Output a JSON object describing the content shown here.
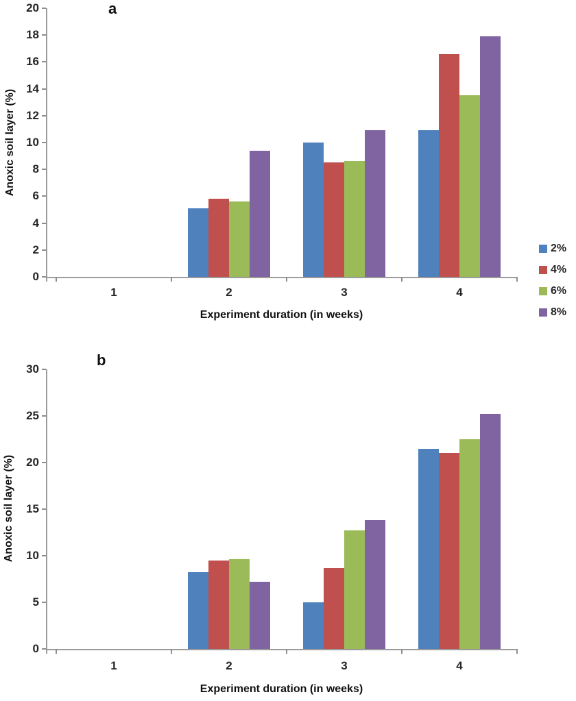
{
  "figure": {
    "background": "#ffffff"
  },
  "legend": {
    "position": "right",
    "items": [
      {
        "label": "2%",
        "color": "#4F81BD"
      },
      {
        "label": "4%",
        "color": "#C0504D"
      },
      {
        "label": "6%",
        "color": "#9BBB59"
      },
      {
        "label": "8%",
        "color": "#8064A2"
      }
    ]
  },
  "chart_data": [
    {
      "type": "bar",
      "panel_label": "a",
      "title": "",
      "xlabel": "Experiment duration (in weeks)",
      "ylabel": "Anoxic soil layer (%)",
      "categories": [
        "1",
        "2",
        "3",
        "4"
      ],
      "ylim": [
        0,
        20
      ],
      "yticks": [
        0,
        2,
        4,
        6,
        8,
        10,
        12,
        14,
        16,
        18,
        20
      ],
      "grid": false,
      "legend_position": "right",
      "series": [
        {
          "name": "2%",
          "color": "#4F81BD",
          "values": [
            0,
            5.1,
            10.0,
            10.9
          ]
        },
        {
          "name": "4%",
          "color": "#C0504D",
          "values": [
            0,
            5.8,
            8.5,
            16.6
          ]
        },
        {
          "name": "6%",
          "color": "#9BBB59",
          "values": [
            0,
            5.6,
            8.6,
            13.5
          ]
        },
        {
          "name": "8%",
          "color": "#8064A2",
          "values": [
            0,
            9.4,
            10.9,
            17.9
          ]
        }
      ]
    },
    {
      "type": "bar",
      "panel_label": "b",
      "title": "",
      "xlabel": "Experiment duration (in weeks)",
      "ylabel": "Anoxic soil layer (%)",
      "categories": [
        "1",
        "2",
        "3",
        "4"
      ],
      "ylim": [
        0,
        30
      ],
      "yticks": [
        0,
        5,
        10,
        15,
        20,
        25,
        30
      ],
      "grid": false,
      "legend_position": "none",
      "series": [
        {
          "name": "2%",
          "color": "#4F81BD",
          "values": [
            0,
            8.2,
            5.0,
            21.5
          ]
        },
        {
          "name": "4%",
          "color": "#C0504D",
          "values": [
            0,
            9.5,
            8.7,
            21.0
          ]
        },
        {
          "name": "6%",
          "color": "#9BBB59",
          "values": [
            0,
            9.6,
            12.7,
            22.5
          ]
        },
        {
          "name": "8%",
          "color": "#8064A2",
          "values": [
            0,
            7.2,
            13.8,
            25.2
          ]
        }
      ]
    }
  ],
  "axis_style": {
    "line_color": "#9b9b9b",
    "tick_color": "#8c8c8c",
    "tick_label_color": "#262626",
    "title_color": "#111111"
  }
}
